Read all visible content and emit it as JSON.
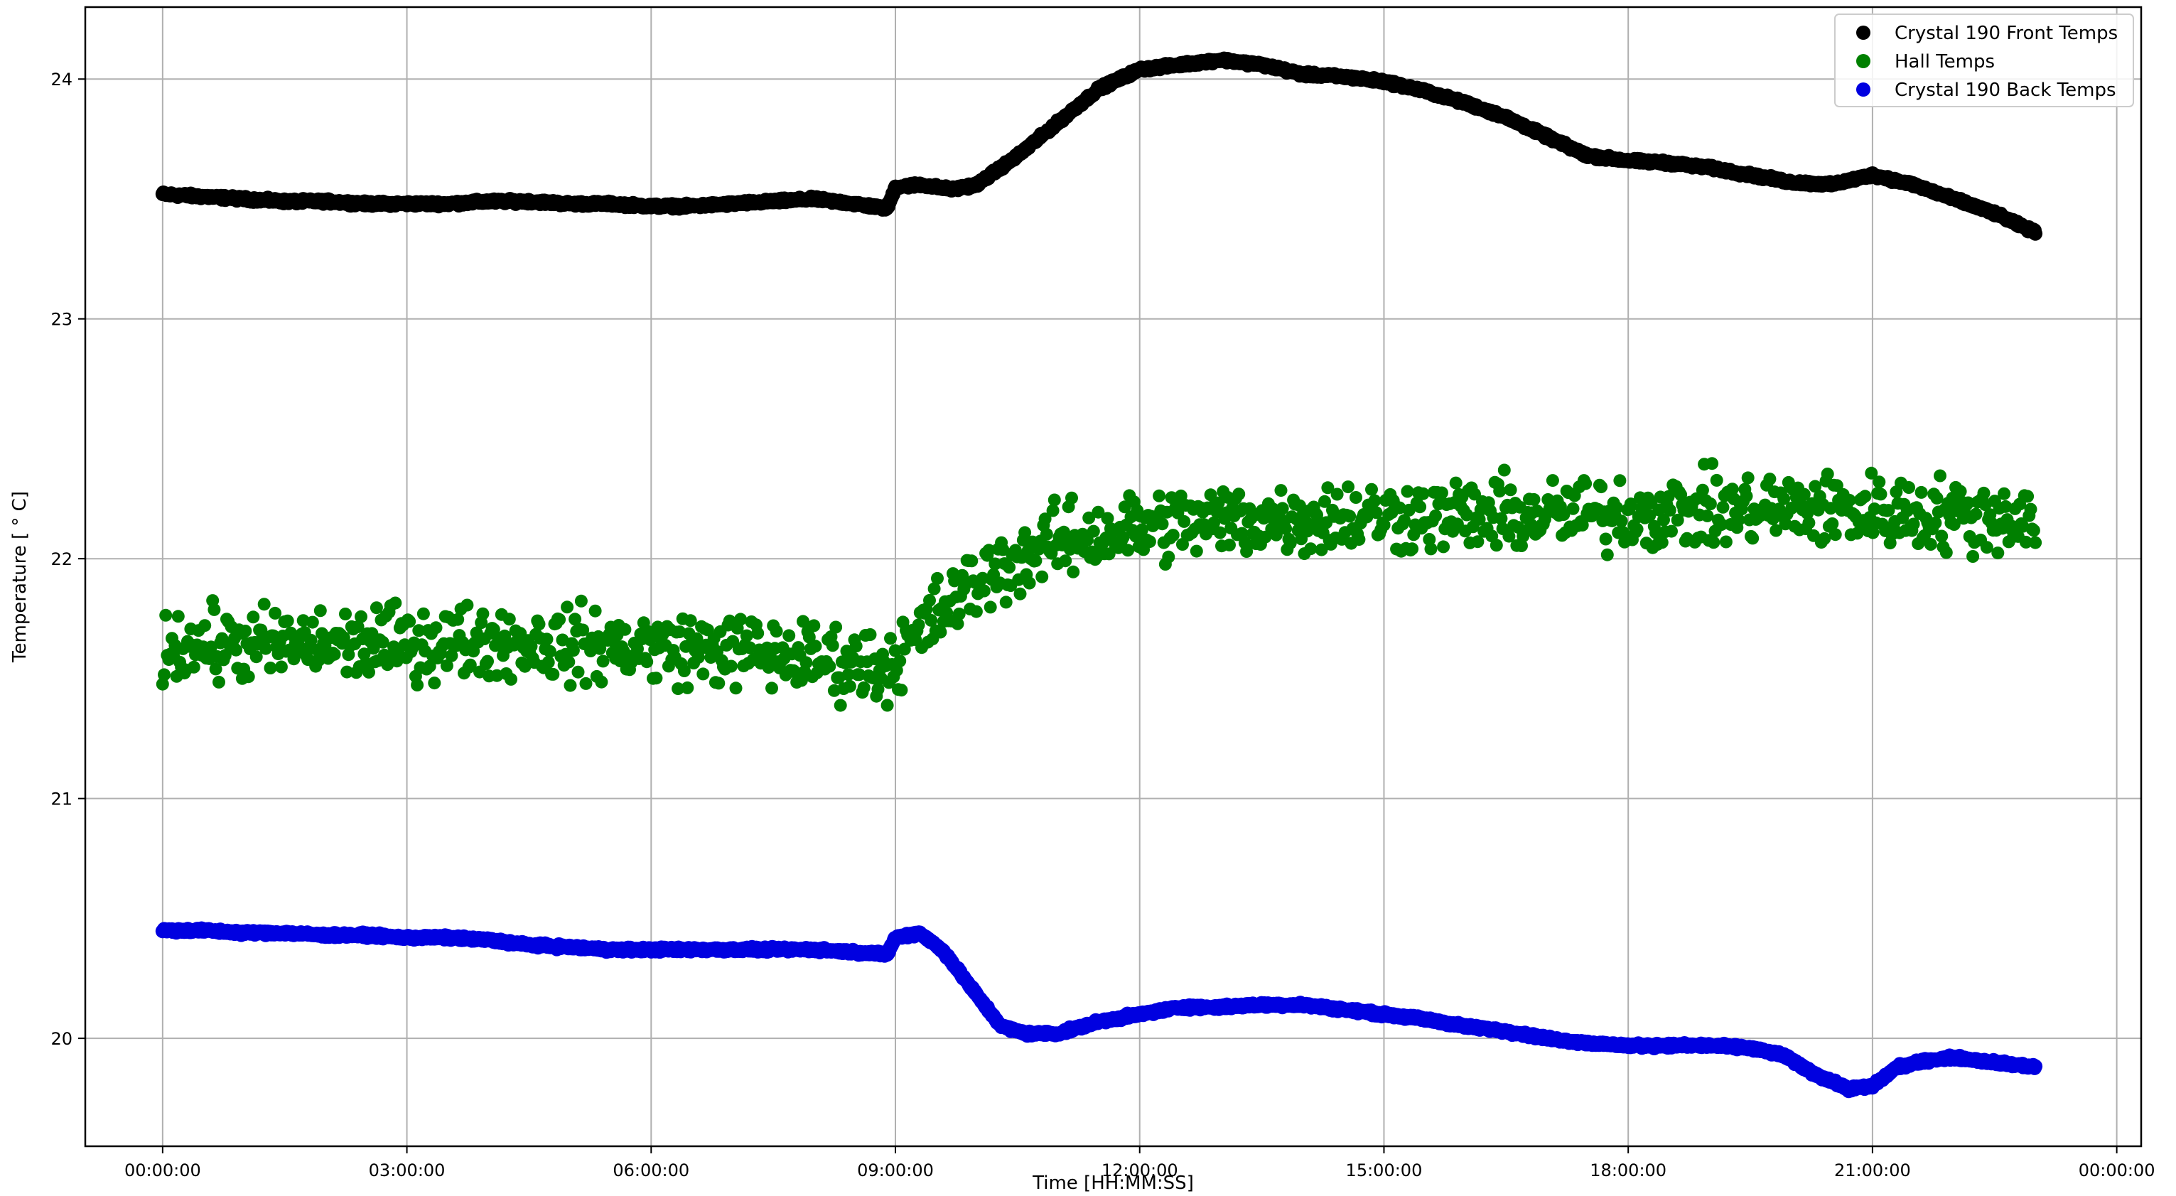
{
  "chart_data": {
    "type": "scatter",
    "xlabel": "Time [HH:MM:SS]",
    "ylabel": "Temperature [$^\\circ$C]",
    "ylabel_display": "Temperature [ ° C]",
    "xlim_hours": [
      -0.95,
      24.3
    ],
    "ylim": [
      19.55,
      24.3
    ],
    "x_ticks": [
      {
        "hours": 0,
        "label": "00:00:00"
      },
      {
        "hours": 3,
        "label": "03:00:00"
      },
      {
        "hours": 6,
        "label": "06:00:00"
      },
      {
        "hours": 9,
        "label": "09:00:00"
      },
      {
        "hours": 12,
        "label": "12:00:00"
      },
      {
        "hours": 15,
        "label": "15:00:00"
      },
      {
        "hours": 18,
        "label": "18:00:00"
      },
      {
        "hours": 21,
        "label": "21:00:00"
      },
      {
        "hours": 24,
        "label": "00:00:00"
      }
    ],
    "y_ticks": [
      {
        "value": 20,
        "label": "20"
      },
      {
        "value": 21,
        "label": "21"
      },
      {
        "value": 22,
        "label": "22"
      },
      {
        "value": 23,
        "label": "23"
      },
      {
        "value": 24,
        "label": "24"
      }
    ],
    "grid": true,
    "legend_position": "top-right",
    "series": [
      {
        "name": "Crystal 190 Front Temps",
        "color": "#000000",
        "x": [
          0,
          0.5,
          1,
          1.5,
          2,
          2.5,
          3,
          3.5,
          4,
          4.5,
          5,
          5.5,
          6,
          6.5,
          7,
          7.5,
          8,
          8.5,
          8.9,
          9.0,
          9.3,
          9.7,
          10,
          10.5,
          11,
          11.5,
          12,
          12.5,
          13,
          13.5,
          14,
          14.5,
          15,
          15.5,
          16,
          16.5,
          17,
          17.5,
          18,
          18.5,
          19,
          19.5,
          20,
          20.5,
          21,
          21.5,
          22,
          22.5,
          23
        ],
        "y": [
          23.52,
          23.51,
          23.5,
          23.49,
          23.49,
          23.48,
          23.48,
          23.48,
          23.49,
          23.49,
          23.48,
          23.48,
          23.47,
          23.47,
          23.48,
          23.49,
          23.5,
          23.48,
          23.46,
          23.55,
          23.56,
          23.54,
          23.56,
          23.68,
          23.82,
          23.96,
          24.04,
          24.06,
          24.08,
          24.06,
          24.02,
          24.01,
          23.99,
          23.95,
          23.9,
          23.84,
          23.76,
          23.68,
          23.66,
          23.65,
          23.63,
          23.6,
          23.57,
          23.56,
          23.6,
          23.56,
          23.5,
          23.44,
          23.36
        ]
      },
      {
        "name": "Hall Temps",
        "color": "#008000",
        "x": [
          0,
          1,
          2,
          3,
          4,
          5,
          6,
          7,
          8,
          8.9,
          9.5,
          10,
          10.5,
          11,
          11.5,
          12,
          12.5,
          13,
          14,
          15,
          16,
          17,
          18,
          19,
          20,
          21,
          22,
          23
        ],
        "y": [
          21.64,
          21.64,
          21.64,
          21.65,
          21.66,
          21.64,
          21.63,
          21.62,
          21.58,
          21.55,
          21.76,
          21.9,
          22.0,
          22.07,
          22.1,
          22.13,
          22.15,
          22.16,
          22.17,
          22.18,
          22.18,
          22.18,
          22.19,
          22.2,
          22.21,
          22.2,
          22.18,
          22.17
        ]
      },
      {
        "name": "Crystal 190 Back Temps",
        "color": "#0000e0",
        "x": [
          0,
          0.5,
          1,
          1.5,
          2,
          2.5,
          3,
          3.5,
          4,
          4.5,
          5,
          5.5,
          6,
          6.5,
          7,
          7.5,
          8,
          8.5,
          8.9,
          9.0,
          9.3,
          9.6,
          10,
          10.3,
          10.6,
          11,
          11.5,
          12,
          12.5,
          13,
          13.5,
          14,
          14.5,
          15,
          15.5,
          16,
          16.5,
          17,
          17.5,
          18,
          18.5,
          19,
          19.5,
          19.9,
          20.3,
          20.7,
          21,
          21.3,
          21.7,
          22,
          22.5,
          23
        ],
        "y": [
          20.45,
          20.45,
          20.44,
          20.44,
          20.43,
          20.43,
          20.42,
          20.42,
          20.41,
          20.39,
          20.38,
          20.37,
          20.37,
          20.37,
          20.37,
          20.37,
          20.37,
          20.36,
          20.35,
          20.42,
          20.44,
          20.36,
          20.18,
          20.05,
          20.02,
          20.02,
          20.07,
          20.1,
          20.13,
          20.13,
          20.14,
          20.14,
          20.12,
          20.1,
          20.08,
          20.05,
          20.03,
          20.0,
          19.98,
          19.97,
          19.97,
          19.97,
          19.96,
          19.93,
          19.85,
          19.79,
          19.8,
          19.88,
          19.91,
          19.92,
          19.9,
          19.88
        ]
      }
    ],
    "hall_noise_amplitude": 0.16,
    "hall_point_count": 1200,
    "front_point_count": 2600,
    "back_point_count": 2600
  }
}
